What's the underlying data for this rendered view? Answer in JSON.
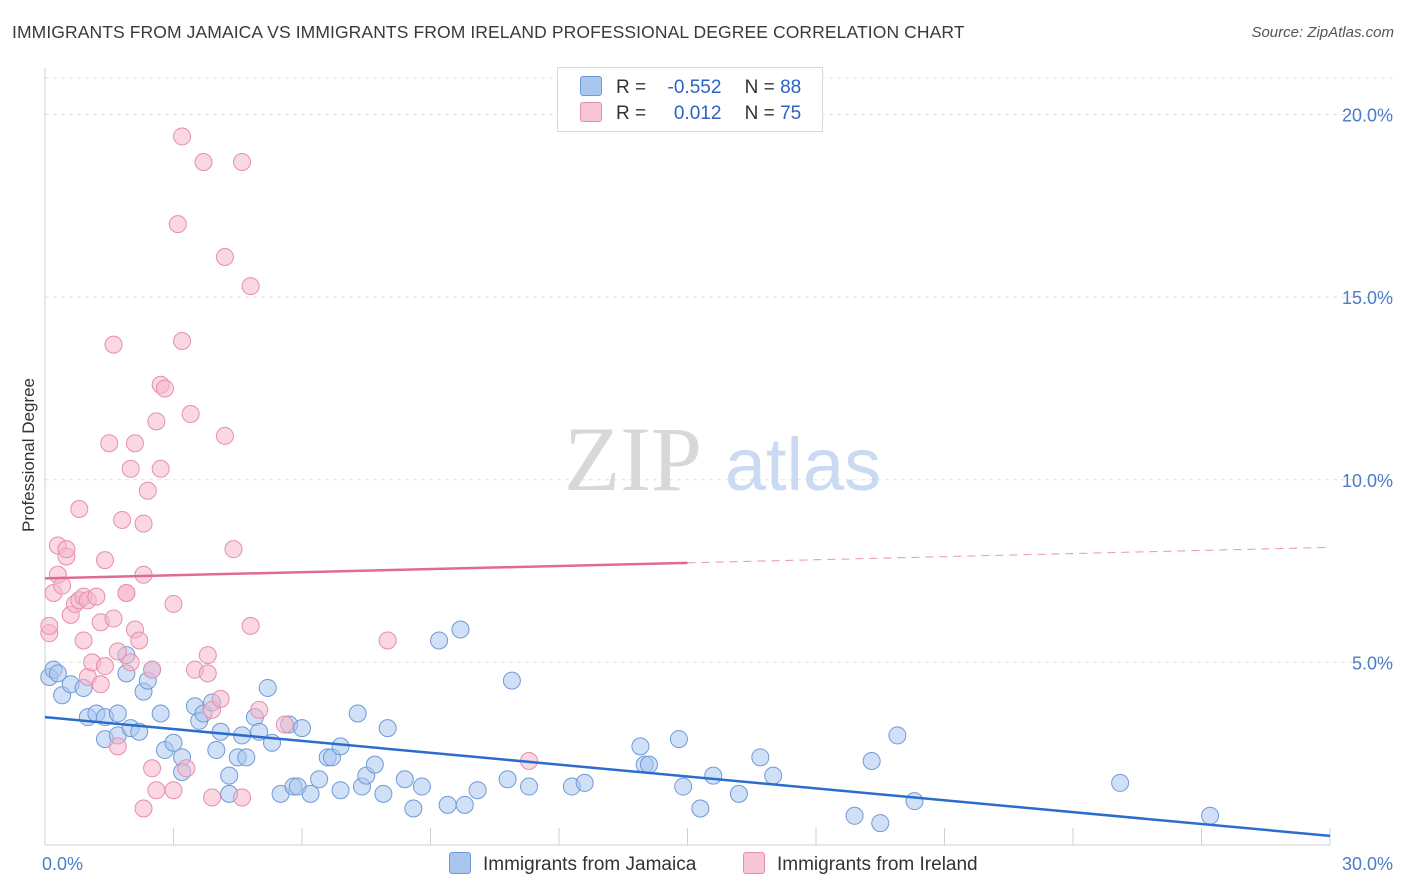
{
  "chart_data": {
    "type": "scatter",
    "title": "IMMIGRANTS FROM JAMAICA VS IMMIGRANTS FROM IRELAND PROFESSIONAL DEGREE CORRELATION CHART",
    "source": "Source: ZipAtlas.com",
    "ylabel": "Professional Degree",
    "xlim": [
      0,
      30
    ],
    "ylim": [
      0,
      21
    ],
    "yticks": [
      {
        "value": 5,
        "label": "5.0%"
      },
      {
        "value": 10,
        "label": "10.0%"
      },
      {
        "value": 15,
        "label": "15.0%"
      },
      {
        "value": 20,
        "label": "20.0%"
      }
    ],
    "xtick_labels": [
      {
        "value": 0,
        "label": "0.0%"
      },
      {
        "value": 30,
        "label": "30.0%"
      }
    ],
    "x_minor_ticks": [
      0,
      3,
      6,
      9,
      12,
      15,
      18,
      21,
      24,
      27,
      30
    ],
    "legend": {
      "rows": [
        {
          "r_label": "R =",
          "r_value": "-0.552",
          "n_label": "N =",
          "n_value": "88",
          "color": "#a9c6ee"
        },
        {
          "r_label": "R =",
          "r_value": "0.012",
          "n_label": "N =",
          "n_value": "75",
          "color": "#f6b6ca"
        }
      ]
    },
    "watermark": {
      "zip": "ZIP",
      "atlas": "atlas"
    },
    "series": [
      {
        "name": "Immigrants from Jamaica",
        "color": "#a9c6ee",
        "stroke": "#6f9ad8",
        "trend": {
          "x0": 0,
          "y0": 3.5,
          "x1": 30,
          "y1": 0.25,
          "color": "#2a6dcc",
          "dashed_from": null
        },
        "points": [
          [
            0.1,
            4.6
          ],
          [
            0.2,
            4.8
          ],
          [
            0.3,
            4.7
          ],
          [
            0.4,
            4.1
          ],
          [
            0.6,
            4.4
          ],
          [
            0.9,
            4.3
          ],
          [
            1.0,
            3.5
          ],
          [
            1.2,
            3.6
          ],
          [
            1.4,
            3.5
          ],
          [
            1.4,
            2.9
          ],
          [
            1.7,
            3.0
          ],
          [
            1.7,
            3.6
          ],
          [
            1.9,
            5.2
          ],
          [
            1.9,
            4.7
          ],
          [
            2.0,
            3.2
          ],
          [
            2.2,
            3.1
          ],
          [
            2.3,
            4.2
          ],
          [
            2.4,
            4.5
          ],
          [
            2.5,
            4.8
          ],
          [
            2.7,
            3.6
          ],
          [
            2.8,
            2.6
          ],
          [
            3.0,
            2.8
          ],
          [
            3.2,
            2.4
          ],
          [
            3.2,
            2.0
          ],
          [
            3.5,
            3.8
          ],
          [
            3.6,
            3.4
          ],
          [
            3.7,
            3.6
          ],
          [
            3.9,
            3.9
          ],
          [
            4.0,
            2.6
          ],
          [
            4.1,
            3.1
          ],
          [
            4.3,
            1.9
          ],
          [
            4.3,
            1.4
          ],
          [
            4.5,
            2.4
          ],
          [
            4.6,
            3.0
          ],
          [
            4.7,
            2.4
          ],
          [
            4.9,
            3.5
          ],
          [
            5.0,
            3.1
          ],
          [
            5.2,
            4.3
          ],
          [
            5.3,
            2.8
          ],
          [
            5.5,
            1.4
          ],
          [
            5.7,
            3.3
          ],
          [
            5.8,
            1.6
          ],
          [
            5.9,
            1.6
          ],
          [
            6.0,
            3.2
          ],
          [
            6.2,
            1.4
          ],
          [
            6.4,
            1.8
          ],
          [
            6.6,
            2.4
          ],
          [
            6.7,
            2.4
          ],
          [
            6.9,
            1.5
          ],
          [
            6.9,
            2.7
          ],
          [
            7.3,
            3.6
          ],
          [
            7.4,
            1.6
          ],
          [
            7.5,
            1.9
          ],
          [
            7.7,
            2.2
          ],
          [
            7.9,
            1.4
          ],
          [
            8.0,
            3.2
          ],
          [
            8.4,
            1.8
          ],
          [
            8.6,
            1.0
          ],
          [
            8.8,
            1.6
          ],
          [
            9.2,
            5.6
          ],
          [
            9.4,
            1.1
          ],
          [
            9.7,
            5.9
          ],
          [
            9.8,
            1.1
          ],
          [
            10.1,
            1.5
          ],
          [
            10.8,
            1.8
          ],
          [
            10.9,
            4.5
          ],
          [
            11.3,
            1.6
          ],
          [
            12.3,
            1.6
          ],
          [
            12.6,
            1.7
          ],
          [
            13.9,
            2.7
          ],
          [
            14.0,
            2.2
          ],
          [
            14.1,
            2.2
          ],
          [
            14.8,
            2.9
          ],
          [
            14.9,
            1.6
          ],
          [
            15.3,
            1.0
          ],
          [
            15.6,
            1.9
          ],
          [
            16.2,
            1.4
          ],
          [
            16.7,
            2.4
          ],
          [
            17.0,
            1.9
          ],
          [
            18.9,
            0.8
          ],
          [
            19.3,
            2.3
          ],
          [
            19.5,
            0.6
          ],
          [
            19.9,
            3.0
          ],
          [
            20.3,
            1.2
          ],
          [
            25.1,
            1.7
          ],
          [
            27.2,
            0.8
          ]
        ]
      },
      {
        "name": "Immigrants from Ireland",
        "color": "#f6b6ca",
        "stroke": "#e58fac",
        "trend": {
          "x0": 0,
          "y0": 7.3,
          "x1": 30,
          "y1": 8.15,
          "color": "#e06a92",
          "dashed_from": 15
        },
        "points": [
          [
            0.1,
            5.8
          ],
          [
            0.1,
            6.0
          ],
          [
            0.2,
            6.9
          ],
          [
            0.3,
            7.4
          ],
          [
            0.3,
            8.2
          ],
          [
            0.4,
            7.1
          ],
          [
            0.5,
            7.9
          ],
          [
            0.5,
            8.1
          ],
          [
            0.6,
            6.3
          ],
          [
            0.7,
            6.6
          ],
          [
            0.8,
            6.7
          ],
          [
            0.8,
            9.2
          ],
          [
            0.9,
            5.6
          ],
          [
            0.9,
            6.8
          ],
          [
            1.0,
            6.7
          ],
          [
            1.0,
            4.6
          ],
          [
            1.1,
            5.0
          ],
          [
            1.2,
            6.8
          ],
          [
            1.3,
            6.1
          ],
          [
            1.3,
            4.4
          ],
          [
            1.4,
            4.9
          ],
          [
            1.4,
            7.8
          ],
          [
            1.5,
            11.0
          ],
          [
            1.6,
            6.2
          ],
          [
            1.6,
            13.7
          ],
          [
            1.7,
            2.7
          ],
          [
            1.7,
            5.3
          ],
          [
            1.8,
            8.9
          ],
          [
            1.9,
            6.9
          ],
          [
            1.9,
            6.9
          ],
          [
            2.0,
            5.0
          ],
          [
            2.0,
            10.3
          ],
          [
            2.1,
            5.9
          ],
          [
            2.1,
            11.0
          ],
          [
            2.2,
            5.6
          ],
          [
            2.3,
            7.4
          ],
          [
            2.3,
            8.8
          ],
          [
            2.3,
            1.0
          ],
          [
            2.4,
            9.7
          ],
          [
            2.5,
            2.1
          ],
          [
            2.5,
            4.8
          ],
          [
            2.6,
            1.5
          ],
          [
            2.6,
            11.6
          ],
          [
            2.7,
            10.3
          ],
          [
            2.7,
            12.6
          ],
          [
            2.8,
            12.5
          ],
          [
            3.0,
            1.5
          ],
          [
            3.0,
            6.6
          ],
          [
            3.1,
            17.0
          ],
          [
            3.2,
            13.8
          ],
          [
            3.2,
            19.4
          ],
          [
            3.3,
            2.1
          ],
          [
            3.4,
            11.8
          ],
          [
            3.5,
            4.8
          ],
          [
            3.7,
            18.7
          ],
          [
            3.8,
            4.7
          ],
          [
            3.8,
            5.2
          ],
          [
            3.9,
            1.3
          ],
          [
            3.9,
            3.7
          ],
          [
            4.1,
            4.0
          ],
          [
            4.2,
            11.2
          ],
          [
            4.2,
            16.1
          ],
          [
            4.4,
            8.1
          ],
          [
            4.6,
            1.3
          ],
          [
            4.6,
            18.7
          ],
          [
            4.8,
            15.3
          ],
          [
            4.8,
            6.0
          ],
          [
            5.0,
            3.7
          ],
          [
            5.6,
            3.3
          ],
          [
            8.0,
            5.6
          ],
          [
            11.3,
            2.3
          ]
        ]
      }
    ]
  },
  "header": {
    "title": "IMMIGRANTS FROM JAMAICA VS IMMIGRANTS FROM IRELAND PROFESSIONAL DEGREE CORRELATION CHART",
    "source": "Source: ZipAtlas.com"
  },
  "bottom_legend": {
    "jamaica": "Immigrants from Jamaica",
    "ireland": "Immigrants from Ireland"
  }
}
